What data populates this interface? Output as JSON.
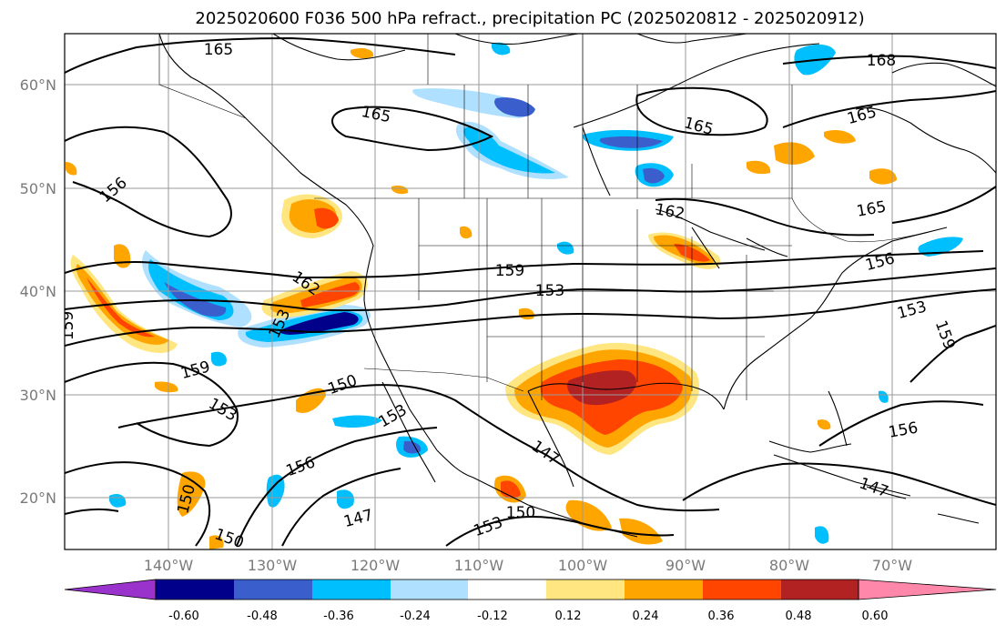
{
  "title": "2025020600 F036 500 hPa refract., precipitation PC (2025020812 - 2025020912)",
  "lat_labels": [
    "60°N",
    "50°N",
    "40°N",
    "30°N",
    "20°N"
  ],
  "lon_labels": [
    "140°W",
    "130°W",
    "120°W",
    "110°W",
    "100°W",
    "90°W",
    "80°W",
    "70°W"
  ],
  "contour_labels": [
    {
      "text": "165"
    },
    {
      "text": "165"
    },
    {
      "text": "165"
    },
    {
      "text": "165"
    },
    {
      "text": "168"
    },
    {
      "text": "165"
    },
    {
      "text": "162"
    },
    {
      "text": "156"
    },
    {
      "text": "162"
    },
    {
      "text": "159"
    },
    {
      "text": "153"
    },
    {
      "text": "153"
    },
    {
      "text": "159"
    },
    {
      "text": "159"
    },
    {
      "text": "153"
    },
    {
      "text": "150"
    },
    {
      "text": "153"
    },
    {
      "text": "156"
    },
    {
      "text": "147"
    },
    {
      "text": "150"
    },
    {
      "text": "147"
    },
    {
      "text": "150"
    },
    {
      "text": "153"
    },
    {
      "text": "153"
    },
    {
      "text": "159"
    },
    {
      "text": "156"
    },
    {
      "text": "147"
    },
    {
      "text": "156"
    },
    {
      "text": "150"
    }
  ],
  "colorbar": {
    "ticks": [
      "-0.60",
      "-0.48",
      "-0.36",
      "-0.24",
      "-0.12",
      "0.12",
      "0.24",
      "0.36",
      "0.48",
      "0.60"
    ],
    "colors": [
      "#9933cc",
      "#00008b",
      "#3a5fcd",
      "#00bfff",
      "#b0e0ff",
      "#ffffff",
      "#ffe680",
      "#ffa500",
      "#ff4500",
      "#b22222",
      "#ff88aa"
    ]
  }
}
